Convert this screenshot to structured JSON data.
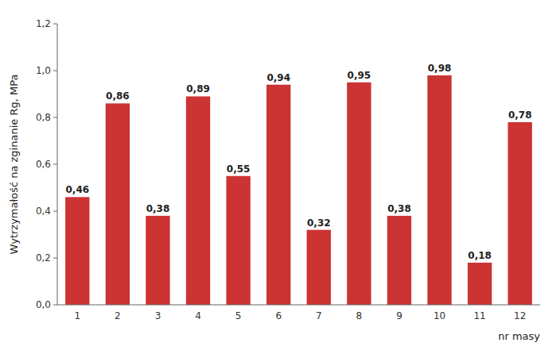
{
  "chart_data": {
    "type": "bar",
    "categories": [
      "1",
      "2",
      "3",
      "4",
      "5",
      "6",
      "7",
      "8",
      "9",
      "10",
      "11",
      "12"
    ],
    "values": [
      0.46,
      0.86,
      0.38,
      0.89,
      0.55,
      0.94,
      0.32,
      0.95,
      0.38,
      0.98,
      0.18,
      0.78
    ],
    "value_labels": [
      "0,46",
      "0,86",
      "0,38",
      "0,89",
      "0,55",
      "0,94",
      "0,32",
      "0,95",
      "0,38",
      "0,98",
      "0,18",
      "0,78"
    ],
    "data_labels": true,
    "color": "#CC3333",
    "ylabel": "Wytrzymałość na zginanie Rg, MPa",
    "xlabel": "nr masy",
    "ylim": [
      0,
      1.2
    ],
    "yticks": [
      {
        "value": 0.0,
        "label": "0,0"
      },
      {
        "value": 0.2,
        "label": "0,2"
      },
      {
        "value": 0.4,
        "label": "0,4"
      },
      {
        "value": 0.6,
        "label": "0,6"
      },
      {
        "value": 0.8,
        "label": "0,8"
      },
      {
        "value": 1.0,
        "label": "1,0"
      },
      {
        "value": 1.2,
        "label": "1,2"
      }
    ],
    "grid": false
  }
}
